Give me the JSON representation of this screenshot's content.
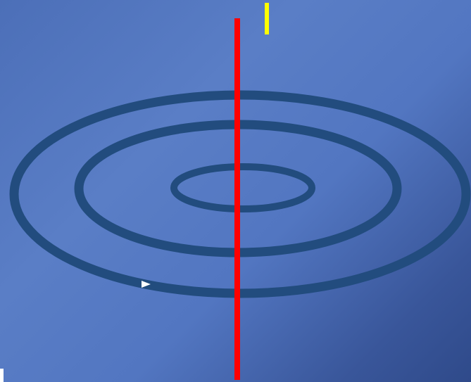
{
  "diagram": {
    "type": "concentric-rings",
    "ring_count": 3,
    "colors": {
      "background_gradient": [
        "#4c6fb8",
        "#5a7ec6",
        "#5276c1",
        "#39569a",
        "#2f4a8a"
      ],
      "rings": "#224c7e",
      "axis_line": "#ff0000",
      "marker": "#ffff00",
      "arrow": "#ffffff",
      "corner_mark": "#ffffff"
    },
    "icons": {
      "arrow": "play-arrow-icon"
    }
  }
}
